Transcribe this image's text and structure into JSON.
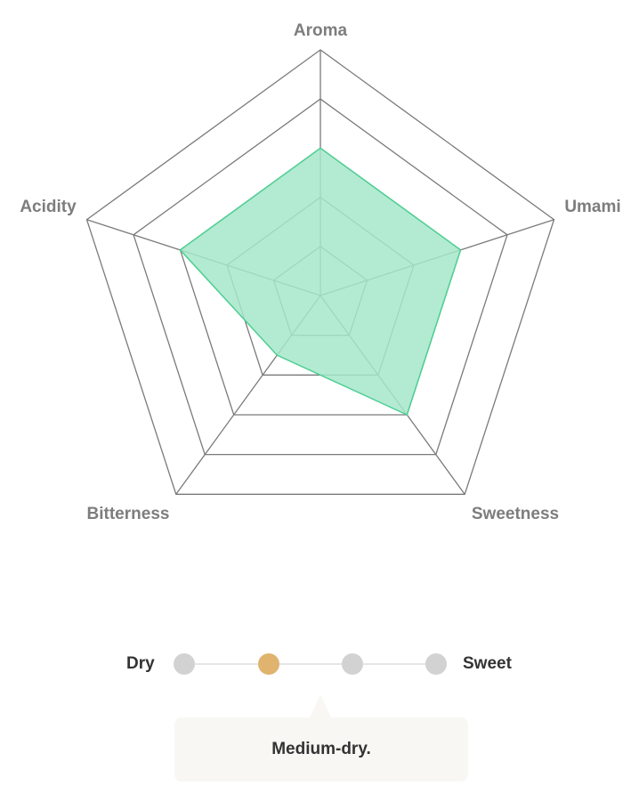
{
  "chart_data": {
    "type": "radar",
    "axes": [
      "Aroma",
      "Umami",
      "Sweetness",
      "Bitterness",
      "Acidity"
    ],
    "values": [
      3,
      3,
      3,
      1.5,
      3
    ],
    "rmax": 5,
    "rings": 5,
    "colors": {
      "grid": "#7a7a7a",
      "fill": "#a5e8c9",
      "stroke": "#4ecf93",
      "label": "#7d7d7d"
    }
  },
  "scale": {
    "left_label": "Dry",
    "right_label": "Sweet",
    "steps": 4,
    "selected_index": 1,
    "active_color": "#e0b46f",
    "inactive_color": "#d2d2d2"
  },
  "tooltip": {
    "text": "Medium-dry."
  }
}
